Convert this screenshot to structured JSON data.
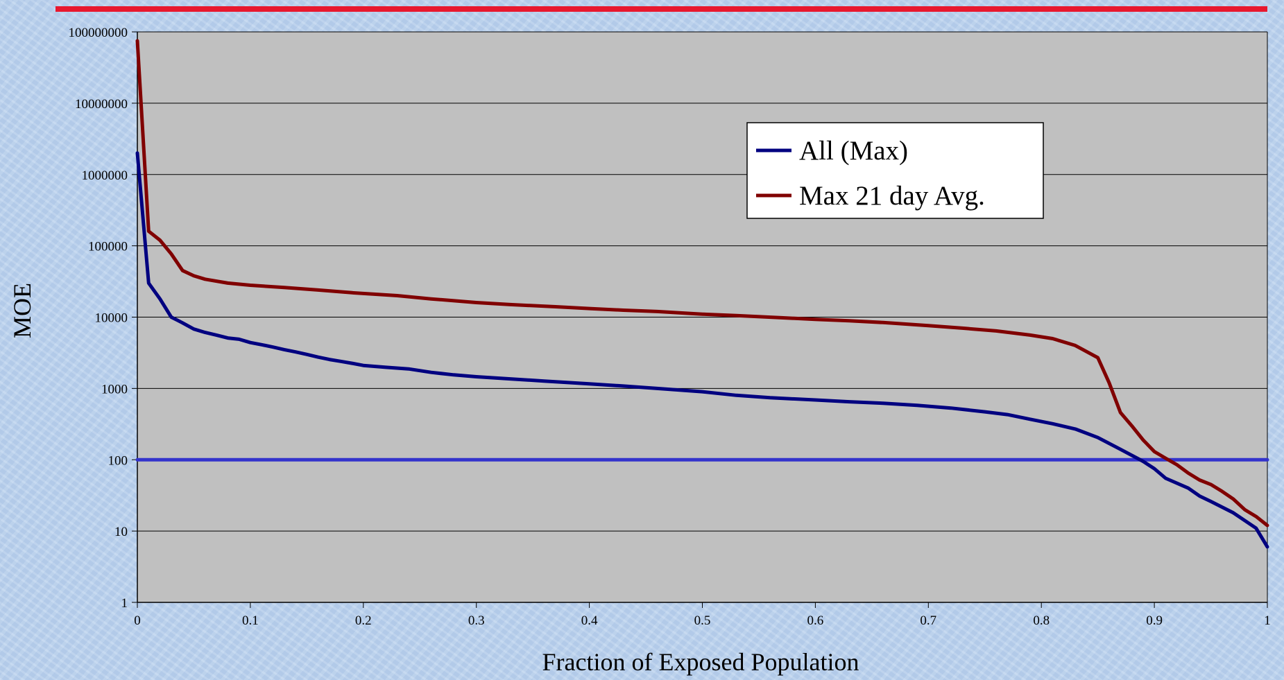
{
  "chart_data": {
    "type": "line",
    "title": "",
    "xlabel": "Fraction of Exposed Population",
    "ylabel": "MOE",
    "xlim": [
      0,
      1
    ],
    "ylim": [
      1,
      100000000
    ],
    "yscale": "log",
    "grid": "horizontal",
    "legend_position": "upper-right-center",
    "x_ticks": [
      "0",
      "0.1",
      "0.2",
      "0.3",
      "0.4",
      "0.5",
      "0.6",
      "0.7",
      "0.8",
      "0.9",
      "1"
    ],
    "y_ticks": [
      "100000000",
      "10000000",
      "1000000",
      "100000",
      "10000",
      "1000",
      "100",
      "10",
      "1"
    ],
    "series": [
      {
        "name": "All (Max)",
        "color": "#000080",
        "points": [
          [
            0,
            2000000
          ],
          [
            0.01,
            30000
          ],
          [
            0.02,
            18000
          ],
          [
            0.03,
            10000
          ],
          [
            0.04,
            8300
          ],
          [
            0.05,
            6800
          ],
          [
            0.06,
            6100
          ],
          [
            0.07,
            5600
          ],
          [
            0.08,
            5100
          ],
          [
            0.09,
            4900
          ],
          [
            0.1,
            4400
          ],
          [
            0.11,
            4100
          ],
          [
            0.12,
            3800
          ],
          [
            0.13,
            3500
          ],
          [
            0.14,
            3250
          ],
          [
            0.15,
            3000
          ],
          [
            0.16,
            2750
          ],
          [
            0.17,
            2550
          ],
          [
            0.18,
            2400
          ],
          [
            0.19,
            2250
          ],
          [
            0.2,
            2100
          ],
          [
            0.22,
            1980
          ],
          [
            0.24,
            1880
          ],
          [
            0.26,
            1680
          ],
          [
            0.28,
            1550
          ],
          [
            0.3,
            1460
          ],
          [
            0.33,
            1360
          ],
          [
            0.36,
            1270
          ],
          [
            0.4,
            1160
          ],
          [
            0.43,
            1080
          ],
          [
            0.46,
            1000
          ],
          [
            0.5,
            900
          ],
          [
            0.53,
            800
          ],
          [
            0.56,
            740
          ],
          [
            0.6,
            690
          ],
          [
            0.63,
            650
          ],
          [
            0.66,
            620
          ],
          [
            0.69,
            580
          ],
          [
            0.72,
            530
          ],
          [
            0.75,
            470
          ],
          [
            0.77,
            430
          ],
          [
            0.79,
            370
          ],
          [
            0.81,
            320
          ],
          [
            0.83,
            270
          ],
          [
            0.85,
            205
          ],
          [
            0.87,
            140
          ],
          [
            0.89,
            95
          ],
          [
            0.9,
            75
          ],
          [
            0.91,
            55
          ],
          [
            0.93,
            40
          ],
          [
            0.94,
            31
          ],
          [
            0.95,
            26
          ],
          [
            0.97,
            18
          ],
          [
            0.99,
            11
          ],
          [
            1,
            6
          ]
        ]
      },
      {
        "name": "Max 21 day Avg.",
        "color": "#800000",
        "points": [
          [
            0,
            75000000
          ],
          [
            0.01,
            160000
          ],
          [
            0.02,
            120000
          ],
          [
            0.03,
            77000
          ],
          [
            0.04,
            45000
          ],
          [
            0.05,
            38000
          ],
          [
            0.06,
            34000
          ],
          [
            0.08,
            30000
          ],
          [
            0.1,
            28000
          ],
          [
            0.13,
            26000
          ],
          [
            0.16,
            24000
          ],
          [
            0.19,
            22000
          ],
          [
            0.23,
            20000
          ],
          [
            0.26,
            18000
          ],
          [
            0.3,
            16000
          ],
          [
            0.33,
            15000
          ],
          [
            0.37,
            14000
          ],
          [
            0.4,
            13200
          ],
          [
            0.43,
            12500
          ],
          [
            0.46,
            12000
          ],
          [
            0.5,
            11000
          ],
          [
            0.53,
            10500
          ],
          [
            0.57,
            9800
          ],
          [
            0.6,
            9300
          ],
          [
            0.63,
            8900
          ],
          [
            0.66,
            8400
          ],
          [
            0.7,
            7600
          ],
          [
            0.73,
            7000
          ],
          [
            0.76,
            6400
          ],
          [
            0.79,
            5600
          ],
          [
            0.81,
            5000
          ],
          [
            0.83,
            4000
          ],
          [
            0.85,
            2700
          ],
          [
            0.86,
            1200
          ],
          [
            0.87,
            460
          ],
          [
            0.88,
            300
          ],
          [
            0.89,
            190
          ],
          [
            0.9,
            130
          ],
          [
            0.91,
            105
          ],
          [
            0.92,
            85
          ],
          [
            0.93,
            65
          ],
          [
            0.94,
            52
          ],
          [
            0.95,
            45
          ],
          [
            0.96,
            36
          ],
          [
            0.97,
            28
          ],
          [
            0.98,
            20
          ],
          [
            0.99,
            16
          ],
          [
            1,
            12
          ]
        ]
      },
      {
        "name": "",
        "color": "#3333cc",
        "role": "threshold",
        "points": [
          [
            0,
            100
          ],
          [
            1,
            100
          ]
        ]
      }
    ]
  },
  "decor": {
    "top_rule_color": "#e8182e",
    "plot_bg": "#c0c0c0"
  }
}
